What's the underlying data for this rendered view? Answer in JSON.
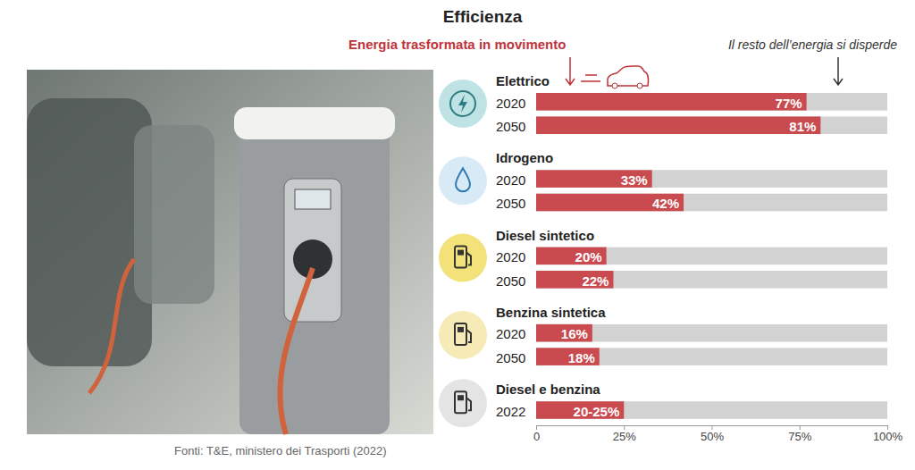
{
  "chart_data": {
    "type": "bar",
    "orientation": "horizontal",
    "title": "Efficienza",
    "subtitle": "Energia trasformata in movimento",
    "annotation": "Il resto dell’energia si disperde",
    "source": "Fonti: T&E, ministero dei Trasporti (2022)",
    "color": "#c94a4f",
    "data_labels": true,
    "grid": false,
    "xlim": [
      0,
      100
    ],
    "xticks": [
      0,
      {
        "value": 25,
        "label": "25%"
      },
      {
        "value": 50,
        "label": "50%"
      },
      {
        "value": 75,
        "label": "75%"
      },
      {
        "value": 100,
        "label": "100%"
      }
    ],
    "groups": [
      {
        "name": "Elettrico",
        "categories": [
          "2020",
          "2050"
        ],
        "values": [
          77,
          81
        ],
        "value_labels": [
          "77%",
          "81%"
        ]
      },
      {
        "name": "Idrogeno",
        "categories": [
          "2020",
          "2050"
        ],
        "values": [
          33,
          42
        ],
        "value_labels": [
          "33%",
          "42%"
        ]
      },
      {
        "name": "Diesel sintetico",
        "categories": [
          "2020",
          "2050"
        ],
        "values": [
          20,
          22
        ],
        "value_labels": [
          "20%",
          "22%"
        ]
      },
      {
        "name": "Benzina sintetica",
        "categories": [
          "2020",
          "2050"
        ],
        "values": [
          16,
          18
        ],
        "value_labels": [
          "16%",
          "18%"
        ]
      },
      {
        "name": "Diesel e benzina",
        "categories": [
          "2022"
        ],
        "values": [
          25
        ],
        "value_labels": [
          "20-25%"
        ]
      }
    ]
  }
}
